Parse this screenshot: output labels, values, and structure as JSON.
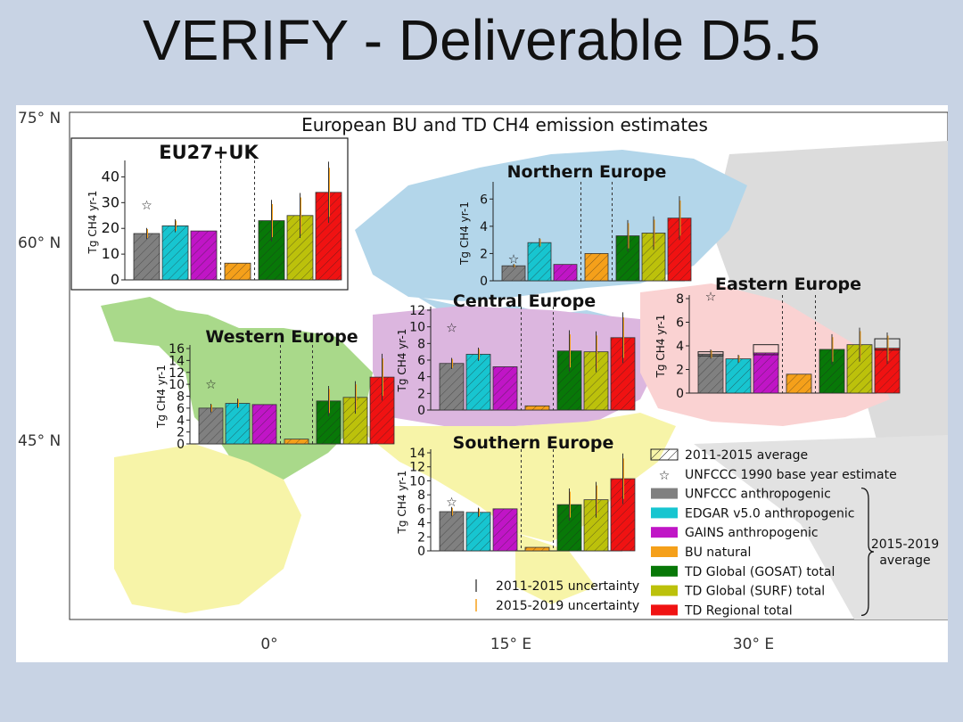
{
  "slide": {
    "title": "VERIFY - Deliverable D5.5"
  },
  "figure": {
    "title": "European BU and TD CH4 emission estimates",
    "lat_labels": [
      "75° N",
      "60° N",
      "45° N"
    ],
    "lon_labels": [
      "0°",
      "15° E",
      "30° E"
    ],
    "legend": {
      "hatch_note": "2011-2015 average",
      "star_note": "UNFCCC 1990 base year estimate",
      "items": [
        {
          "label": "UNFCCC anthropogenic",
          "color": "#808080"
        },
        {
          "label": "EDGAR v5.0 anthropogenic",
          "color": "#17c5d0"
        },
        {
          "label": "GAINS anthropogenic",
          "color": "#c015c6"
        },
        {
          "label": "BU natural",
          "color": "#f5a01a"
        },
        {
          "label": "TD Global (GOSAT) total",
          "color": "#087808"
        },
        {
          "label": "TD Global (SURF) total",
          "color": "#bcc10b"
        },
        {
          "label": "TD Regional total",
          "color": "#f01212"
        }
      ],
      "bracket_label": "2015-2019\naverage",
      "uncert_1": "2011-2015 uncertainty",
      "uncert_2": "2015-2019 uncertainty"
    }
  },
  "chart_data": [
    {
      "type": "bar",
      "title": "EU27+UK",
      "ylabel": "Tg CH4 yr-1",
      "yticks": [
        0,
        10,
        20,
        30,
        40
      ],
      "ylim": [
        0,
        45
      ],
      "categories": [
        "UNFCCC anthropogenic",
        "EDGAR v5.0 anthropogenic",
        "GAINS anthropogenic",
        "BU natural",
        "TD Global (GOSAT) total",
        "TD Global (SURF) total",
        "TD Regional total"
      ],
      "values": [
        18,
        21,
        19,
        6.5,
        23,
        25,
        34
      ],
      "base_year_1990": 29
    },
    {
      "type": "bar",
      "title": "Northern Europe",
      "ylabel": "Tg CH4 yr-1",
      "yticks": [
        0,
        2,
        4,
        6
      ],
      "ylim": [
        0,
        7
      ],
      "categories": [
        "UNFCCC anthropogenic",
        "EDGAR v5.0 anthropogenic",
        "GAINS anthropogenic",
        "BU natural",
        "TD Global (GOSAT) total",
        "TD Global (SURF) total",
        "TD Regional total"
      ],
      "values": [
        1.1,
        2.8,
        1.2,
        2.0,
        3.3,
        3.5,
        4.6
      ],
      "base_year_1990": 1.6
    },
    {
      "type": "bar",
      "title": "Central Europe",
      "ylabel": "Tg CH4 yr-1",
      "yticks": [
        0,
        2,
        4,
        6,
        8,
        10,
        12
      ],
      "ylim": [
        0,
        12
      ],
      "categories": [
        "UNFCCC anthropogenic",
        "EDGAR v5.0 anthropogenic",
        "GAINS anthropogenic",
        "BU natural",
        "TD Global (GOSAT) total",
        "TD Global (SURF) total",
        "TD Regional total"
      ],
      "values": [
        5.6,
        6.7,
        5.2,
        0.5,
        7.1,
        7.0,
        8.7
      ],
      "base_year_1990": 9.9
    },
    {
      "type": "bar",
      "title": "Eastern Europe",
      "ylabel": "Tg CH4 yr-1",
      "yticks": [
        0,
        2,
        4,
        6,
        8
      ],
      "ylim": [
        0,
        8
      ],
      "categories": [
        "UNFCCC anthropogenic",
        "EDGAR v5.0 anthropogenic",
        "GAINS anthropogenic",
        "BU natural",
        "TD Global (GOSAT) total",
        "TD Global (SURF) total",
        "TD Regional total"
      ],
      "values": [
        3.3,
        2.9,
        3.4,
        1.6,
        3.7,
        4.1,
        3.8
      ],
      "hatched_2011_2015": [
        3.5,
        null,
        4.1,
        null,
        null,
        null,
        4.6
      ],
      "base_year_1990": 8.2
    },
    {
      "type": "bar",
      "title": "Western Europe",
      "ylabel": "Tg CH4 yr-1",
      "yticks": [
        0,
        2,
        4,
        6,
        8,
        10,
        12,
        14,
        16
      ],
      "ylim": [
        0,
        16
      ],
      "categories": [
        "UNFCCC anthropogenic",
        "EDGAR v5.0 anthropogenic",
        "GAINS anthropogenic",
        "BU natural",
        "TD Global (GOSAT) total",
        "TD Global (SURF) total",
        "TD Regional total"
      ],
      "values": [
        6.0,
        6.8,
        6.6,
        0.8,
        7.2,
        7.8,
        11.2
      ],
      "base_year_1990": 10.0
    },
    {
      "type": "bar",
      "title": "Southern Europe",
      "ylabel": "Tg CH4 yr-1",
      "yticks": [
        0,
        2,
        4,
        6,
        8,
        10,
        12,
        14
      ],
      "ylim": [
        0,
        14
      ],
      "categories": [
        "UNFCCC anthropogenic",
        "EDGAR v5.0 anthropogenic",
        "GAINS anthropogenic",
        "BU natural",
        "TD Global (GOSAT) total",
        "TD Global (SURF) total",
        "TD Regional total"
      ],
      "values": [
        5.6,
        5.5,
        6.0,
        0.5,
        6.6,
        7.3,
        10.3
      ],
      "base_year_1990": 7.0
    }
  ]
}
